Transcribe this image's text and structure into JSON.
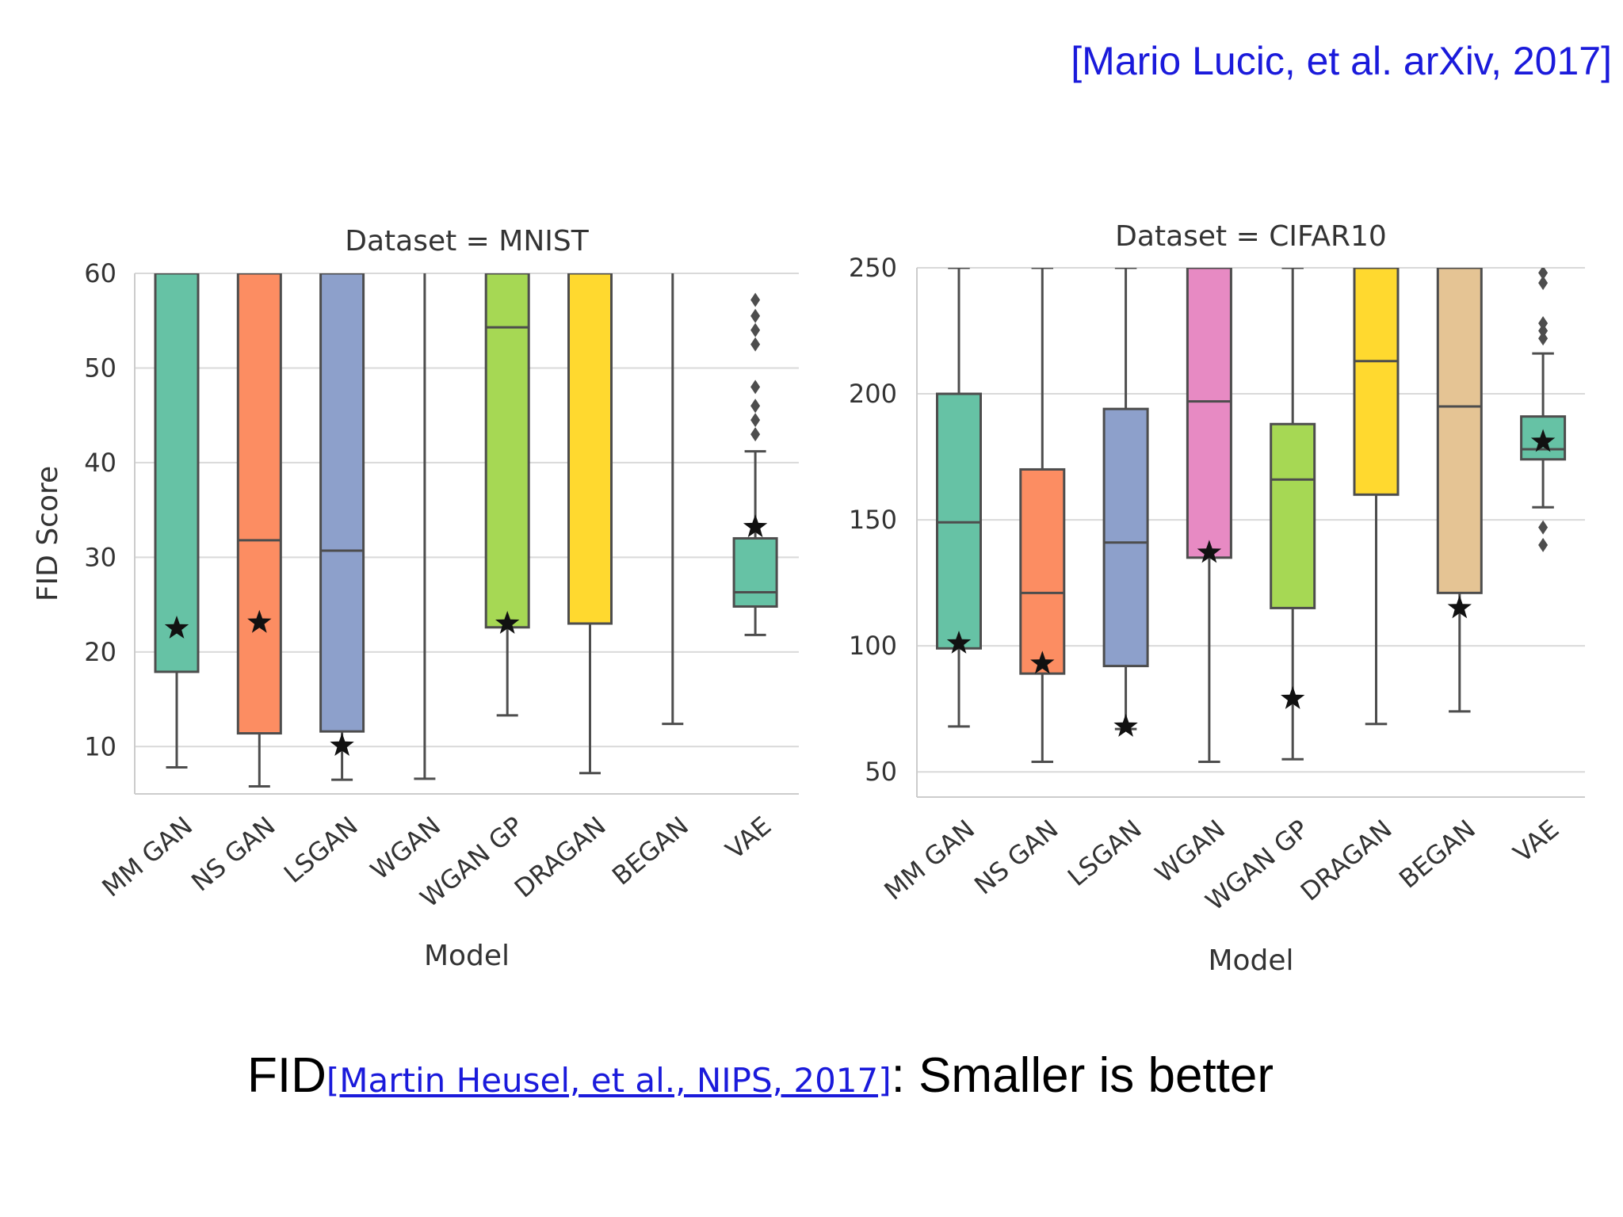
{
  "citation": "[Mario Lucic, et al. arXiv, 2017]",
  "caption": {
    "prefix": "FID",
    "reference": "[Martin Heusel, et al., NIPS, 2017]",
    "suffix": ": Smaller is better"
  },
  "chart_data": [
    {
      "type": "box",
      "title": "Dataset = MNIST",
      "xlabel": "Model",
      "ylabel": "FID Score",
      "ylim": [
        5,
        60
      ],
      "yticks": [
        10,
        20,
        30,
        40,
        50,
        60
      ],
      "grid": true,
      "categories": [
        "MM GAN",
        "NS GAN",
        "LSGAN",
        "WGAN",
        "WGAN GP",
        "DRAGAN",
        "BEGAN",
        "VAE"
      ],
      "boxes": [
        {
          "name": "MM GAN",
          "whisker_low": 7.8,
          "q1": 17.9,
          "median": 60,
          "q3": 60,
          "whisker_high": 60,
          "best": 22.5,
          "outliers": [],
          "color": "#66c2a5"
        },
        {
          "name": "NS GAN",
          "whisker_low": 5.8,
          "q1": 11.4,
          "median": 31.8,
          "q3": 60,
          "whisker_high": 60,
          "best": 23.1,
          "outliers": [],
          "color": "#fc8d62"
        },
        {
          "name": "LSGAN",
          "whisker_low": 6.5,
          "q1": 11.6,
          "median": 30.7,
          "q3": 60,
          "whisker_high": 60,
          "best": 10.1,
          "outliers": [],
          "color": "#8da0cb"
        },
        {
          "name": "WGAN",
          "whisker_low": 6.6,
          "q1": null,
          "median": null,
          "q3": null,
          "whisker_high": 60,
          "best": null,
          "outliers": [],
          "color": "#e78ac3"
        },
        {
          "name": "WGAN GP",
          "whisker_low": 13.3,
          "q1": 22.6,
          "median": 54.3,
          "q3": 60,
          "whisker_high": 60,
          "best": 23.0,
          "outliers": [],
          "color": "#a6d854"
        },
        {
          "name": "DRAGAN",
          "whisker_low": 7.2,
          "q1": 23.0,
          "median": 60,
          "q3": 60,
          "whisker_high": 60,
          "best": null,
          "outliers": [],
          "color": "#ffd92f"
        },
        {
          "name": "BEGAN",
          "whisker_low": 12.4,
          "q1": null,
          "median": null,
          "q3": null,
          "whisker_high": 60,
          "best": null,
          "outliers": [],
          "color": "#e5c494"
        },
        {
          "name": "VAE",
          "whisker_low": 21.8,
          "q1": 24.8,
          "median": 26.3,
          "q3": 32.0,
          "whisker_high": 41.2,
          "best": 33.2,
          "outliers": [
            43.0,
            44.5,
            46.0,
            48.0,
            52.5,
            54.0,
            55.5,
            57.2
          ],
          "color": "#66c2a5"
        }
      ]
    },
    {
      "type": "box",
      "title": "Dataset = CIFAR10",
      "xlabel": "Model",
      "ylabel": "",
      "ylim": [
        40,
        250
      ],
      "yticks": [
        50,
        100,
        150,
        200,
        250
      ],
      "grid": true,
      "categories": [
        "MM GAN",
        "NS GAN",
        "LSGAN",
        "WGAN",
        "WGAN GP",
        "DRAGAN",
        "BEGAN",
        "VAE"
      ],
      "boxes": [
        {
          "name": "MM GAN",
          "whisker_low": 68,
          "q1": 99,
          "median": 149,
          "q3": 200,
          "whisker_high": 250,
          "best": 101,
          "outliers": [],
          "color": "#66c2a5"
        },
        {
          "name": "NS GAN",
          "whisker_low": 54,
          "q1": 89,
          "median": 121,
          "q3": 170,
          "whisker_high": 250,
          "best": 93,
          "outliers": [],
          "color": "#fc8d62"
        },
        {
          "name": "LSGAN",
          "whisker_low": 67,
          "q1": 92,
          "median": 141,
          "q3": 194,
          "whisker_high": 250,
          "best": 68,
          "outliers": [],
          "color": "#8da0cb"
        },
        {
          "name": "WGAN",
          "whisker_low": 54,
          "q1": 135,
          "median": 197,
          "q3": 250,
          "whisker_high": 250,
          "best": 137,
          "outliers": [],
          "color": "#e78ac3"
        },
        {
          "name": "WGAN GP",
          "whisker_low": 55,
          "q1": 115,
          "median": 166,
          "q3": 188,
          "whisker_high": 250,
          "best": 79,
          "outliers": [],
          "color": "#a6d854"
        },
        {
          "name": "DRAGAN",
          "whisker_low": 69,
          "q1": 160,
          "median": 213,
          "q3": 250,
          "whisker_high": 250,
          "best": null,
          "outliers": [],
          "color": "#ffd92f"
        },
        {
          "name": "BEGAN",
          "whisker_low": 74,
          "q1": 121,
          "median": 195,
          "q3": 250,
          "whisker_high": 250,
          "best": 115,
          "outliers": [],
          "color": "#e5c494"
        },
        {
          "name": "VAE",
          "whisker_low": 155,
          "q1": 174,
          "median": 178,
          "q3": 191,
          "whisker_high": 216,
          "best": 181,
          "outliers": [
            140,
            147,
            222,
            225,
            228,
            244,
            248
          ],
          "color": "#66c2a5"
        }
      ]
    }
  ]
}
